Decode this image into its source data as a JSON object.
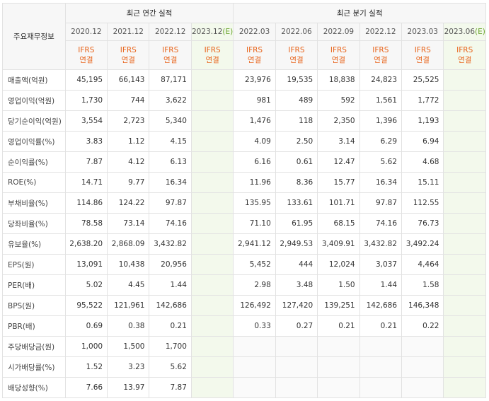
{
  "table": {
    "row_header": "주요재무정보",
    "groups": [
      {
        "title": "최근 연간 실적",
        "columns": [
          {
            "period": "2020.12",
            "standard": "IFRS",
            "scope": "연결"
          },
          {
            "period": "2021.12",
            "standard": "IFRS",
            "scope": "연결"
          },
          {
            "period": "2022.12",
            "standard": "IFRS",
            "scope": "연결"
          },
          {
            "period": "2023.12",
            "mark": "(E)",
            "standard": "IFRS",
            "scope": "연결"
          }
        ]
      },
      {
        "title": "최근 분기 실적",
        "columns": [
          {
            "period": "2022.03",
            "standard": "IFRS",
            "scope": "연결"
          },
          {
            "period": "2022.06",
            "standard": "IFRS",
            "scope": "연결"
          },
          {
            "period": "2022.09",
            "standard": "IFRS",
            "scope": "연결"
          },
          {
            "period": "2022.12",
            "standard": "IFRS",
            "scope": "연결"
          },
          {
            "period": "2023.03",
            "standard": "IFRS",
            "scope": "연결"
          },
          {
            "period": "2023.06",
            "mark": "(E)",
            "standard": "IFRS",
            "scope": "연결"
          }
        ]
      }
    ],
    "rows": [
      {
        "label": "매출액(억원)",
        "values": [
          "45,195",
          "66,143",
          "87,171",
          null,
          "23,976",
          "19,535",
          "18,838",
          "24,823",
          "25,525",
          null
        ]
      },
      {
        "label": "영업이익(억원)",
        "values": [
          "1,730",
          "744",
          "3,622",
          null,
          "981",
          "489",
          "592",
          "1,561",
          "1,772",
          null
        ]
      },
      {
        "label": "당기순이익(억원)",
        "values": [
          "3,554",
          "2,723",
          "5,340",
          null,
          "1,476",
          "118",
          "2,350",
          "1,396",
          "1,193",
          null
        ]
      },
      {
        "label": "영업이익률(%)",
        "values": [
          "3.83",
          "1.12",
          "4.15",
          null,
          "4.09",
          "2.50",
          "3.14",
          "6.29",
          "6.94",
          null
        ]
      },
      {
        "label": "순이익률(%)",
        "values": [
          "7.87",
          "4.12",
          "6.13",
          null,
          "6.16",
          "0.61",
          "12.47",
          "5.62",
          "4.68",
          null
        ]
      },
      {
        "label": "ROE(%)",
        "values": [
          "14.71",
          "9.77",
          "16.34",
          null,
          "11.96",
          "8.36",
          "15.77",
          "16.34",
          "15.11",
          null
        ]
      },
      {
        "label": "부채비율(%)",
        "values": [
          "114.86",
          "124.22",
          "97.87",
          null,
          "135.95",
          "133.61",
          "101.71",
          "97.87",
          "112.55",
          null
        ]
      },
      {
        "label": "당좌비율(%)",
        "values": [
          "78.58",
          "73.14",
          "74.16",
          null,
          "71.10",
          "61.95",
          "68.15",
          "74.16",
          "76.73",
          null
        ]
      },
      {
        "label": "유보율(%)",
        "values": [
          "2,638.20",
          "2,868.09",
          "3,432.82",
          null,
          "2,941.12",
          "2,949.53",
          "3,409.91",
          "3,432.82",
          "3,492.24",
          null
        ]
      },
      {
        "label": "EPS(원)",
        "values": [
          "13,091",
          "10,438",
          "20,956",
          null,
          "5,452",
          "444",
          "12,024",
          "3,037",
          "4,464",
          null
        ]
      },
      {
        "label": "PER(배)",
        "values": [
          "5.02",
          "4.45",
          "1.44",
          null,
          "2.98",
          "3.48",
          "1.50",
          "1.44",
          "1.58",
          null
        ]
      },
      {
        "label": "BPS(원)",
        "values": [
          "95,522",
          "121,961",
          "142,686",
          null,
          "126,492",
          "127,420",
          "139,251",
          "142,686",
          "146,348",
          null
        ]
      },
      {
        "label": "PBR(배)",
        "values": [
          "0.69",
          "0.38",
          "0.21",
          null,
          "0.33",
          "0.27",
          "0.21",
          "0.21",
          "0.22",
          null
        ]
      },
      {
        "label": "주당배당금(원)",
        "values": [
          "1,000",
          "1,500",
          "1,700",
          null,
          null,
          null,
          null,
          null,
          null,
          null
        ]
      },
      {
        "label": "시가배당률(%)",
        "values": [
          "1.52",
          "3.23",
          "5.62",
          null,
          null,
          null,
          null,
          null,
          null,
          null
        ]
      },
      {
        "label": "배당성향(%)",
        "values": [
          "7.66",
          "13.97",
          "7.87",
          null,
          null,
          null,
          null,
          null,
          null,
          null
        ]
      }
    ]
  }
}
